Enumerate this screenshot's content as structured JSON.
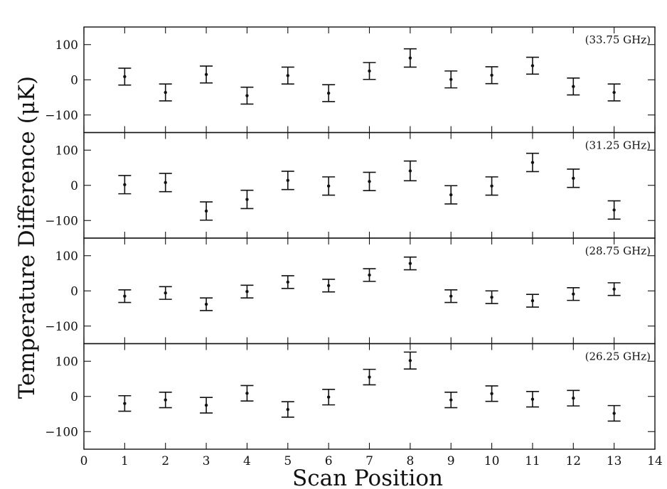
{
  "chart_data": {
    "type": "scatter",
    "ylabel": "Temperature Difference (μK)",
    "xlabel": "Scan Position",
    "xlim": [
      0,
      14
    ],
    "ylim": [
      -150,
      150
    ],
    "x_ticks": [
      0,
      1,
      2,
      3,
      4,
      5,
      6,
      7,
      8,
      9,
      10,
      11,
      12,
      13,
      14
    ],
    "y_ticks": [
      -100,
      0,
      100
    ],
    "grid": false,
    "panels": [
      {
        "label": "(33.75 GHz)",
        "x": [
          1,
          2,
          3,
          4,
          5,
          6,
          7,
          8,
          9,
          10,
          11,
          12,
          13
        ],
        "y": [
          9,
          -36,
          15,
          -45,
          12,
          -38,
          25,
          62,
          1,
          13,
          40,
          -19,
          -36
        ],
        "yerr": [
          24,
          24,
          24,
          24,
          24,
          24,
          24,
          26,
          24,
          24,
          24,
          24,
          24
        ]
      },
      {
        "label": "(31.25 GHz)",
        "x": [
          1,
          2,
          3,
          4,
          5,
          6,
          7,
          8,
          9,
          10,
          11,
          12,
          13
        ],
        "y": [
          2,
          8,
          -73,
          -40,
          14,
          -2,
          11,
          41,
          -27,
          -2,
          65,
          20,
          -70
        ],
        "yerr": [
          26,
          26,
          26,
          26,
          26,
          26,
          26,
          28,
          26,
          26,
          26,
          26,
          26
        ]
      },
      {
        "label": "(28.75 GHz)",
        "x": [
          1,
          2,
          3,
          4,
          5,
          6,
          7,
          8,
          9,
          10,
          11,
          12,
          13
        ],
        "y": [
          -15,
          -6,
          -38,
          -2,
          25,
          15,
          45,
          78,
          -15,
          -18,
          -28,
          -9,
          5
        ],
        "yerr": [
          18,
          18,
          18,
          18,
          18,
          18,
          18,
          18,
          18,
          18,
          18,
          18,
          18
        ]
      },
      {
        "label": "(26.25 GHz)",
        "x": [
          1,
          2,
          3,
          4,
          5,
          6,
          7,
          8,
          9,
          10,
          11,
          12,
          13
        ],
        "y": [
          -20,
          -10,
          -25,
          9,
          -37,
          -2,
          55,
          102,
          -10,
          8,
          -8,
          -5,
          -48
        ],
        "yerr": [
          22,
          22,
          22,
          22,
          22,
          22,
          22,
          24,
          22,
          22,
          22,
          22,
          22
        ]
      }
    ]
  }
}
